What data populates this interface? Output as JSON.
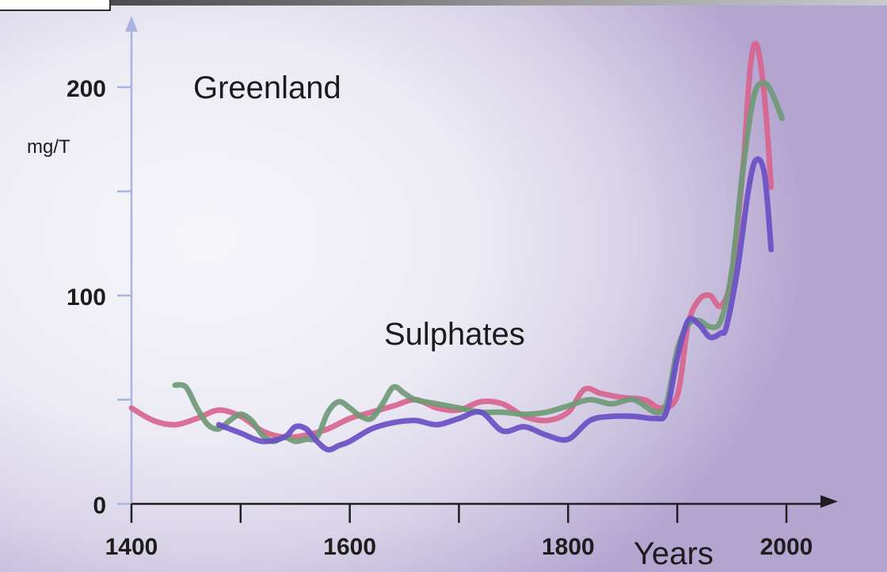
{
  "chart_data": {
    "type": "line",
    "title": "Greenland",
    "annotation": "Sulphates",
    "xlabel": "Years",
    "ylabel": "mg/T",
    "xlim": [
      1400,
      2000
    ],
    "ylim": [
      0,
      200
    ],
    "x_ticks": [
      1400,
      1500,
      1600,
      1700,
      1800,
      1900,
      2000
    ],
    "x_tick_labels": [
      "1400",
      "",
      "1600",
      "",
      "1800",
      "",
      "2000"
    ],
    "y_ticks": [
      0,
      50,
      100,
      150,
      200
    ],
    "y_tick_labels": [
      "0",
      "",
      "100",
      "",
      "200"
    ],
    "grid": false,
    "legend": "none",
    "series": [
      {
        "color": "#d7658e",
        "x": [
          1400,
          1420,
          1440,
          1460,
          1480,
          1500,
          1520,
          1540,
          1560,
          1580,
          1600,
          1620,
          1640,
          1660,
          1680,
          1700,
          1720,
          1740,
          1760,
          1780,
          1800,
          1815,
          1830,
          1850,
          1870,
          1885,
          1900,
          1910,
          1920,
          1930,
          1940,
          1950,
          1960,
          1967,
          1973,
          1980,
          1986
        ],
        "values": [
          46,
          40,
          38,
          41,
          45,
          42,
          35,
          32,
          33,
          36,
          41,
          44,
          47,
          50,
          46,
          45,
          49,
          48,
          42,
          40,
          44,
          55,
          53,
          51,
          50,
          46,
          52,
          86,
          98,
          100,
          95,
          110,
          160,
          210,
          220,
          195,
          152
        ]
      },
      {
        "color": "#6f9a76",
        "x": [
          1440,
          1450,
          1460,
          1470,
          1480,
          1490,
          1500,
          1510,
          1520,
          1530,
          1540,
          1550,
          1560,
          1570,
          1580,
          1590,
          1600,
          1610,
          1620,
          1630,
          1640,
          1650,
          1660,
          1680,
          1700,
          1720,
          1740,
          1760,
          1780,
          1800,
          1820,
          1840,
          1860,
          1880,
          1890,
          1900,
          1910,
          1920,
          1930,
          1940,
          1950,
          1960,
          1970,
          1978,
          1986,
          1996
        ],
        "values": [
          57,
          56,
          46,
          38,
          36,
          40,
          43,
          40,
          33,
          30,
          32,
          30,
          31,
          32,
          44,
          49,
          46,
          42,
          41,
          48,
          56,
          53,
          50,
          48,
          46,
          44,
          44,
          43,
          44,
          47,
          50,
          48,
          50,
          44,
          48,
          74,
          86,
          88,
          85,
          88,
          112,
          160,
          195,
          202,
          198,
          185
        ]
      },
      {
        "color": "#6a4fc4",
        "x": [
          1480,
          1500,
          1520,
          1540,
          1550,
          1560,
          1570,
          1580,
          1590,
          1600,
          1620,
          1640,
          1660,
          1680,
          1700,
          1720,
          1740,
          1760,
          1780,
          1800,
          1820,
          1840,
          1860,
          1880,
          1890,
          1900,
          1910,
          1920,
          1930,
          1940,
          1945,
          1955,
          1965,
          1972,
          1980,
          1986
        ],
        "values": [
          38,
          34,
          30,
          32,
          37,
          36,
          30,
          26,
          28,
          30,
          36,
          39,
          40,
          38,
          41,
          44,
          35,
          37,
          33,
          31,
          40,
          42,
          42,
          41,
          44,
          70,
          88,
          86,
          80,
          82,
          85,
          112,
          150,
          165,
          158,
          122
        ]
      }
    ]
  }
}
